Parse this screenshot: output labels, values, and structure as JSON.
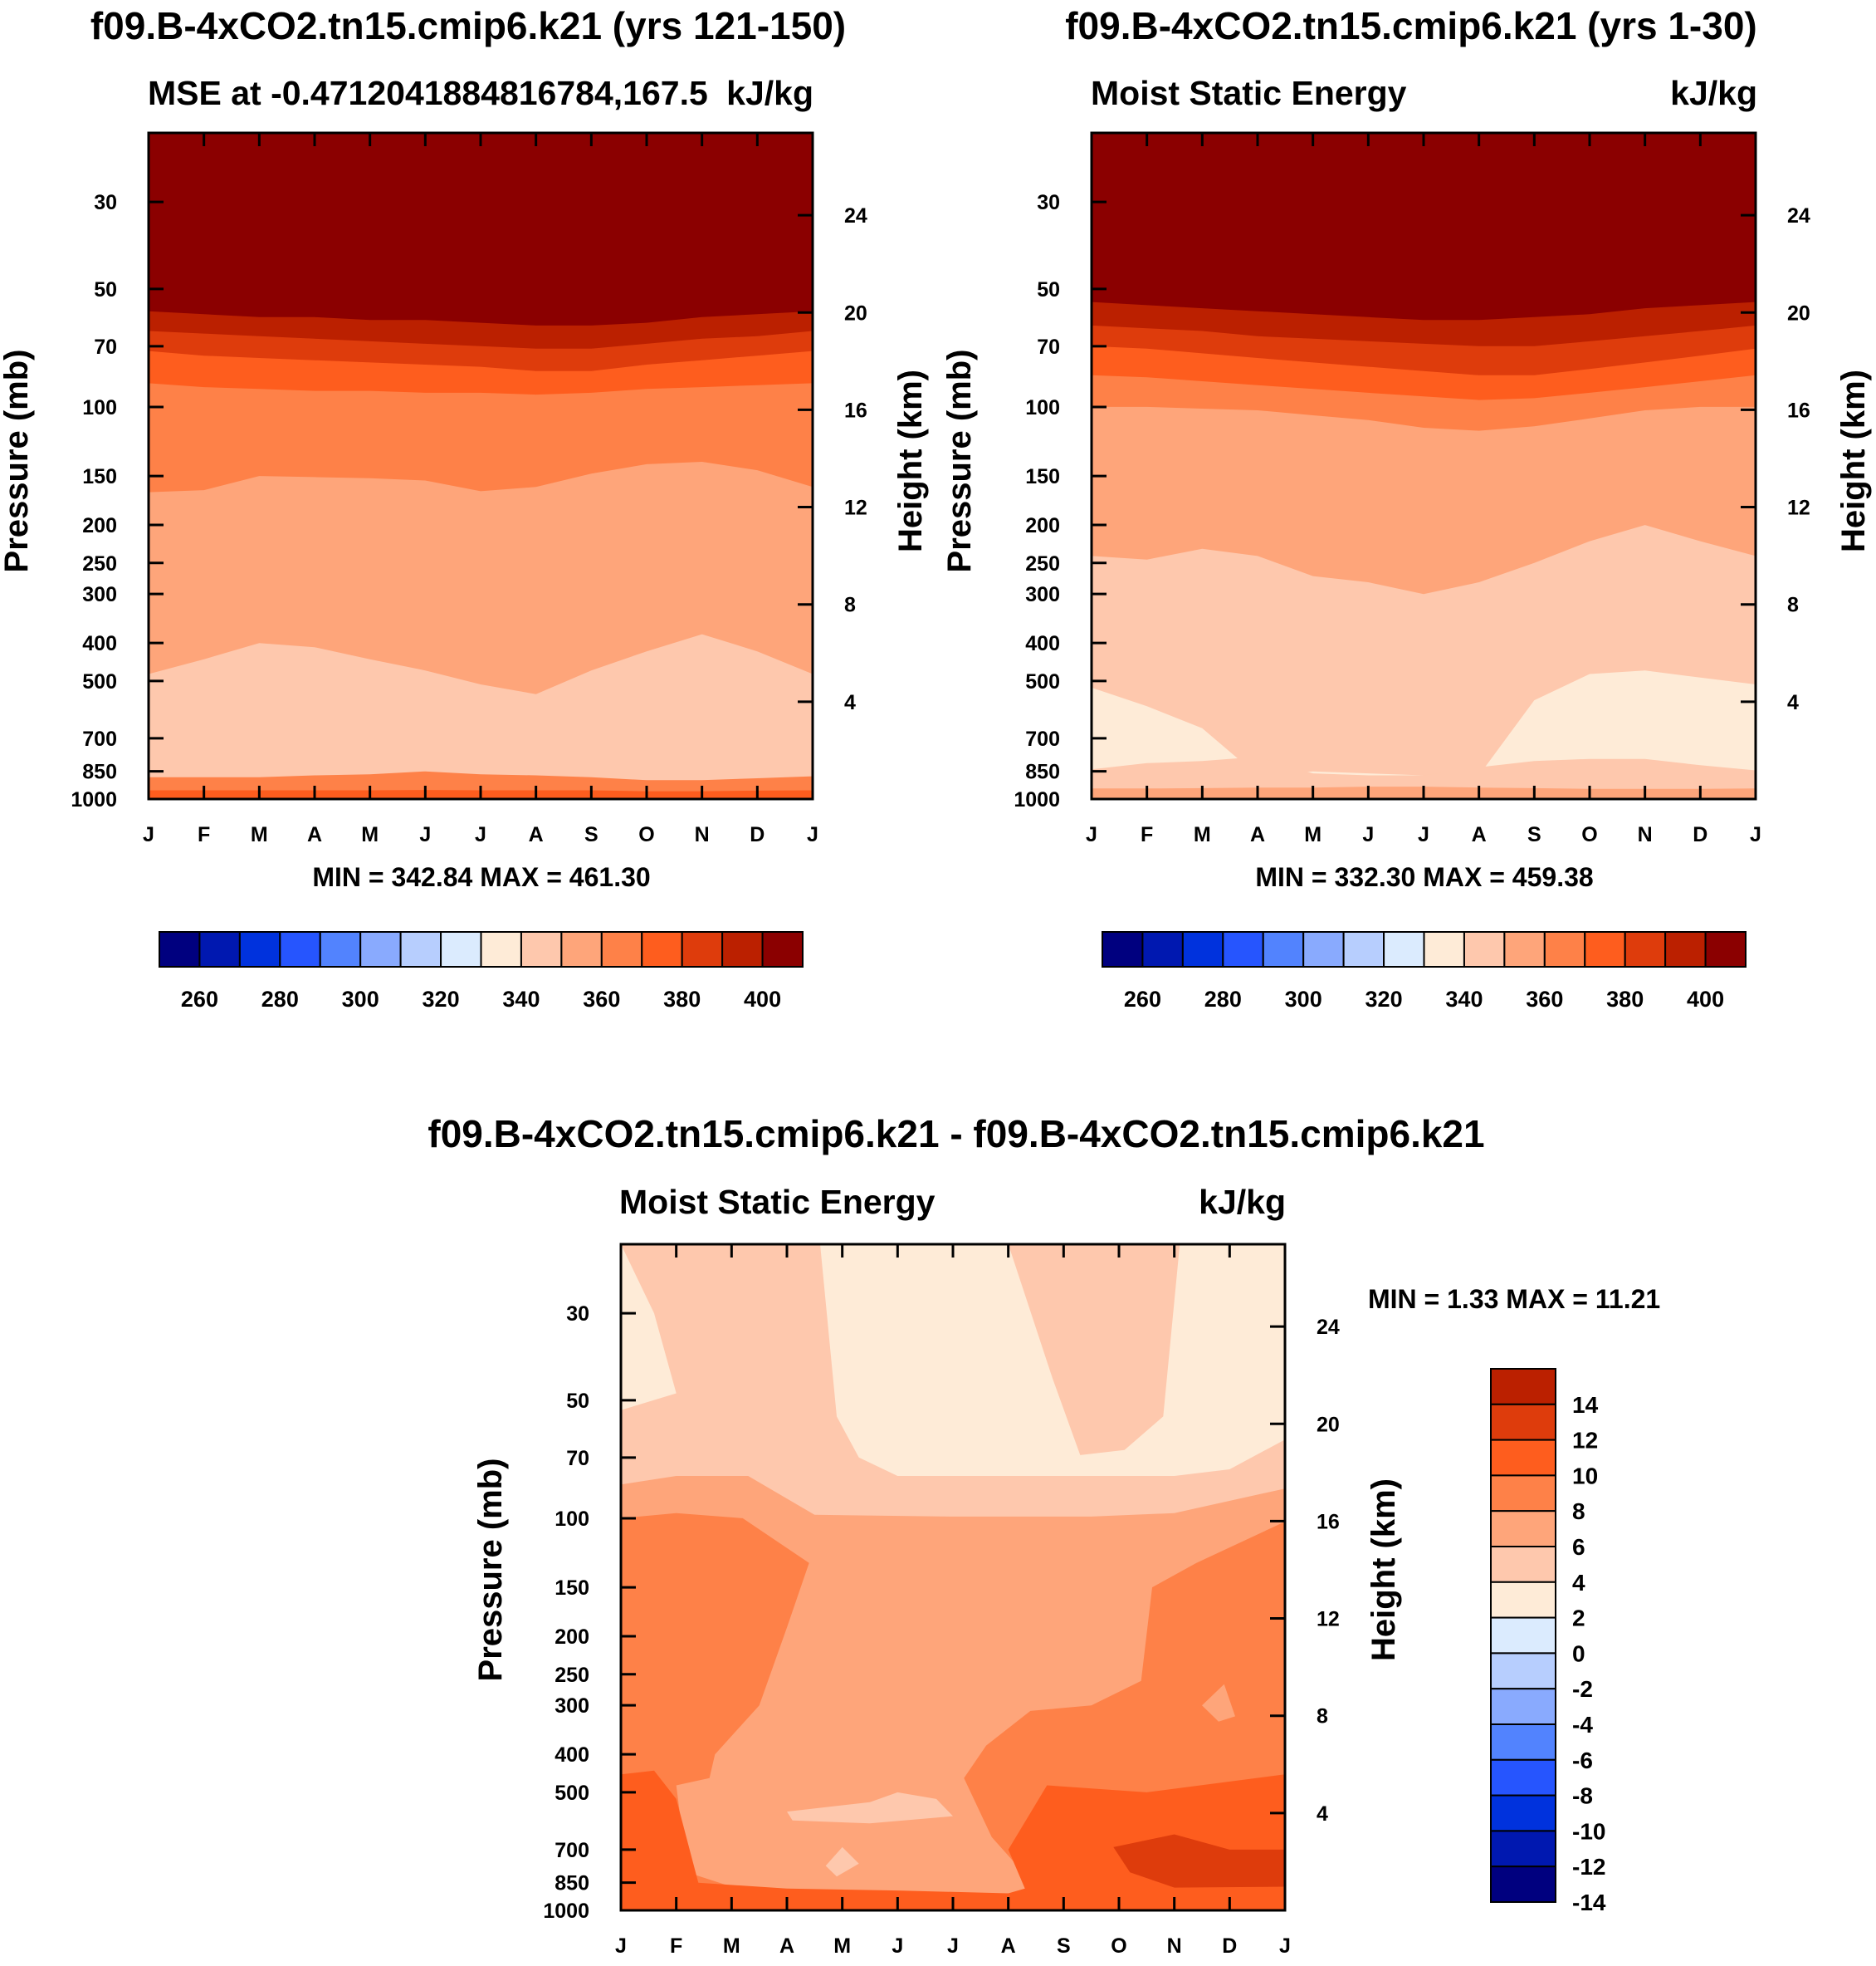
{
  "chart_data": [
    {
      "type": "contour",
      "panel": "top-left",
      "title": "f09.B-4xCO2.tn15.cmip6.k21 (yrs 121-150)",
      "left_subtitle": "MSE at -0.4712041884816784,167.5",
      "right_subtitle": "kJ/kg",
      "ylabel": "Pressure (mb)",
      "y2label": "Height (km)",
      "xlabel": "",
      "x_ticks": [
        "J",
        "F",
        "M",
        "A",
        "M",
        "J",
        "J",
        "A",
        "S",
        "O",
        "N",
        "D",
        "J"
      ],
      "pressure_ticks": [
        30,
        50,
        70,
        100,
        150,
        200,
        250,
        300,
        400,
        500,
        700,
        850,
        1000
      ],
      "pressure_range": [
        1000,
        20
      ],
      "height_ticks": [
        4,
        8,
        12,
        16,
        20,
        24
      ],
      "min_max_text": "MIN = 342.84 MAX = 461.30",
      "levels": [
        250,
        260,
        270,
        280,
        290,
        300,
        310,
        320,
        330,
        340,
        350,
        360,
        370,
        380,
        390,
        400,
        410
      ],
      "colorbar_labels": [
        "260",
        "280",
        "300",
        "320",
        "340",
        "360",
        "380",
        "400"
      ],
      "bands": [
        {
          "color": "#8b0000",
          "boundary_pressure": [
            57,
            58,
            59,
            59,
            60,
            60,
            61,
            62,
            62,
            61,
            59,
            58,
            57
          ]
        },
        {
          "color": "#bb2000",
          "boundary_pressure": [
            64,
            65,
            66,
            67,
            68,
            69,
            70,
            71,
            71,
            69,
            67,
            66,
            64
          ]
        },
        {
          "color": "#de3c0c",
          "boundary_pressure": [
            72,
            74,
            75,
            76,
            77,
            78,
            79,
            81,
            81,
            78,
            76,
            74,
            72
          ]
        },
        {
          "color": "#fe5d1e",
          "boundary_pressure": [
            87,
            89,
            90,
            91,
            91,
            92,
            92,
            93,
            92,
            90,
            89,
            88,
            87
          ]
        },
        {
          "color": "#fe8148",
          "boundary_pressure": [
            165,
            163,
            150,
            151,
            152,
            154,
            164,
            160,
            148,
            140,
            138,
            145,
            160
          ]
        },
        {
          "color": "#fea57a",
          "boundary_pressure": [
            480,
            440,
            400,
            410,
            440,
            470,
            510,
            540,
            470,
            420,
            380,
            420,
            480
          ]
        },
        {
          "color": "#fec8ad",
          "boundary_pressure": [
            880,
            880,
            880,
            870,
            865,
            850,
            865,
            870,
            880,
            895,
            895,
            885,
            875
          ]
        },
        {
          "color": "#fe8148",
          "boundary_pressure": [
            950,
            950,
            950,
            950,
            950,
            948,
            950,
            950,
            950,
            955,
            955,
            952,
            950
          ]
        },
        {
          "color": "#fe5d1e",
          "boundary_pressure": [
            1000,
            1000,
            1000,
            1000,
            1000,
            1000,
            1000,
            1000,
            1000,
            1000,
            1000,
            1000,
            1000
          ]
        }
      ]
    },
    {
      "type": "contour",
      "panel": "top-right",
      "title": "f09.B-4xCO2.tn15.cmip6.k21 (yrs 1-30)",
      "left_subtitle": "Moist Static Energy",
      "right_subtitle": "kJ/kg",
      "ylabel": "Pressure (mb)",
      "y2label": "Height (km)",
      "x_ticks": [
        "J",
        "F",
        "M",
        "A",
        "M",
        "J",
        "J",
        "A",
        "S",
        "O",
        "N",
        "D",
        "J"
      ],
      "pressure_ticks": [
        30,
        50,
        70,
        100,
        150,
        200,
        250,
        300,
        400,
        500,
        700,
        850,
        1000
      ],
      "height_ticks": [
        4,
        8,
        12,
        16,
        20,
        24
      ],
      "min_max_text": "MIN = 332.30 MAX = 459.38",
      "levels": [
        250,
        260,
        270,
        280,
        290,
        300,
        310,
        320,
        330,
        340,
        350,
        360,
        370,
        380,
        390,
        400,
        410
      ],
      "colorbar_labels": [
        "260",
        "280",
        "300",
        "320",
        "340",
        "360",
        "380",
        "400"
      ],
      "bands": [
        {
          "color": "#8b0000",
          "boundary_pressure": [
            54,
            55,
            56,
            57,
            58,
            59,
            60,
            60,
            59,
            58,
            56,
            55,
            54
          ]
        },
        {
          "color": "#bb2000",
          "boundary_pressure": [
            62,
            63,
            64,
            66,
            67,
            68,
            69,
            70,
            70,
            68,
            66,
            64,
            62
          ]
        },
        {
          "color": "#de3c0c",
          "boundary_pressure": [
            70,
            71,
            73,
            75,
            77,
            79,
            81,
            83,
            83,
            80,
            77,
            74,
            71
          ]
        },
        {
          "color": "#fe5d1e",
          "boundary_pressure": [
            83,
            84,
            86,
            88,
            90,
            92,
            94,
            96,
            95,
            92,
            89,
            86,
            83
          ]
        },
        {
          "color": "#fe8148",
          "boundary_pressure": [
            100,
            100,
            101,
            102,
            105,
            108,
            113,
            115,
            112,
            107,
            102,
            100,
            100
          ]
        },
        {
          "color": "#fea57a",
          "boundary_pressure": [
            240,
            245,
            230,
            240,
            270,
            280,
            300,
            280,
            250,
            220,
            200,
            220,
            240
          ]
        },
        {
          "color": "#fec8ad",
          "boundary_pressure": [
            520,
            580,
            660,
            870,
            850,
            860,
            870,
            870,
            560,
            480,
            470,
            490,
            510
          ]
        },
        {
          "color": "#feebd7",
          "boundary_pressure": [
            840,
            810,
            800,
            780,
            860,
            870,
            870,
            830,
            800,
            790,
            790,
            820,
            845
          ]
        },
        {
          "color": "#fec8ad",
          "boundary_pressure": [
            940,
            940,
            938,
            935,
            935,
            930,
            930,
            935,
            938,
            942,
            942,
            942,
            940
          ]
        },
        {
          "color": "#fea57a",
          "boundary_pressure": [
            1000,
            1000,
            1000,
            1000,
            1000,
            1000,
            1000,
            1000,
            1000,
            1000,
            1000,
            1000,
            1000
          ]
        }
      ]
    },
    {
      "type": "contour",
      "panel": "bottom",
      "title": "f09.B-4xCO2.tn15.cmip6.k21 - f09.B-4xCO2.tn15.cmip6.k21",
      "left_subtitle": "Moist Static Energy",
      "right_subtitle": "kJ/kg",
      "ylabel": "Pressure (mb)",
      "y2label": "Height (km)",
      "x_ticks": [
        "J",
        "F",
        "M",
        "A",
        "M",
        "J",
        "J",
        "A",
        "S",
        "O",
        "N",
        "D",
        "J"
      ],
      "pressure_ticks": [
        30,
        50,
        70,
        100,
        150,
        200,
        250,
        300,
        400,
        500,
        700,
        850,
        1000
      ],
      "height_ticks": [
        4,
        8,
        12,
        16,
        20,
        24
      ],
      "min_max_text": "MIN =   1.33 MAX =  11.21",
      "levels": [
        -15,
        -13,
        -11,
        -9,
        -7,
        -5,
        -3,
        -1,
        1,
        3,
        5,
        7,
        9,
        11,
        13,
        15
      ],
      "colorbar_labels": [
        "14",
        "12",
        "10",
        "8",
        "6",
        "4",
        "2",
        "0",
        "-2",
        "-4",
        "-6",
        "-8",
        "-10",
        "-12",
        "-14"
      ],
      "blobs": [
        {
          "color": "#feebd7",
          "points": [
            [
              0,
              20
            ],
            [
              0,
              53
            ],
            [
              1,
              48
            ],
            [
              0.6,
              30
            ]
          ]
        },
        {
          "color": "#feebd7",
          "points": [
            [
              3.6,
              20
            ],
            [
              7,
              20
            ],
            [
              7.8,
              44
            ],
            [
              8.3,
              69
            ],
            [
              9.1,
              67
            ],
            [
              9.8,
              55
            ],
            [
              10.1,
              20
            ],
            [
              12,
              20
            ],
            [
              12,
              63
            ],
            [
              11,
              75
            ],
            [
              10,
              78
            ],
            [
              8,
              78
            ],
            [
              5,
              78
            ],
            [
              4.3,
              70
            ],
            [
              3.9,
              55
            ]
          ]
        },
        {
          "color": "#fea57a",
          "points": [
            [
              0,
              82
            ],
            [
              1,
              78
            ],
            [
              2.3,
              78
            ],
            [
              3.5,
              98
            ],
            [
              6,
              99
            ],
            [
              7.4,
              99
            ],
            [
              8.5,
              99
            ],
            [
              10,
              97
            ],
            [
              12,
              84
            ],
            [
              12,
              1000
            ],
            [
              0,
              1000
            ]
          ]
        },
        {
          "color": "#fe8148",
          "points": [
            [
              0,
              100
            ],
            [
              1,
              97
            ],
            [
              2.2,
              100
            ],
            [
              3.4,
              130
            ],
            [
              3.0,
              190
            ],
            [
              2.5,
              300
            ],
            [
              1.7,
              400
            ],
            [
              1.6,
              460
            ],
            [
              1,
              480
            ],
            [
              1.2,
              800
            ],
            [
              2,
              870
            ],
            [
              3,
              900
            ],
            [
              4,
              920
            ],
            [
              6,
              930
            ],
            [
              7.2,
              940
            ],
            [
              7.5,
              870
            ],
            [
              6.7,
              650
            ],
            [
              6.2,
              460
            ],
            [
              6.6,
              380
            ],
            [
              7.4,
              310
            ],
            [
              8.5,
              300
            ],
            [
              9.4,
              260
            ],
            [
              9.6,
              150
            ],
            [
              10.4,
              130
            ],
            [
              12,
              102
            ],
            [
              12,
              1000
            ],
            [
              0,
              1000
            ]
          ]
        },
        {
          "color": "#fe5d1e",
          "points": [
            [
              0,
              450
            ],
            [
              0.6,
              440
            ],
            [
              1,
              520
            ],
            [
              1.4,
              850
            ],
            [
              3,
              880
            ],
            [
              5,
              890
            ],
            [
              7,
              905
            ],
            [
              7.3,
              880
            ],
            [
              7.0,
              700
            ],
            [
              7.7,
              480
            ],
            [
              9.5,
              500
            ],
            [
              12,
              450
            ],
            [
              12,
              1000
            ],
            [
              0,
              1000
            ]
          ]
        },
        {
          "color": "#de3c0c",
          "points": [
            [
              8.9,
              690
            ],
            [
              10,
              640
            ],
            [
              11,
              700
            ],
            [
              12,
              700
            ],
            [
              12,
              870
            ],
            [
              10,
              875
            ],
            [
              9.2,
              800
            ]
          ]
        },
        {
          "color": "#fea57a",
          "points": [
            [
              10.5,
              300
            ],
            [
              10.9,
              265
            ],
            [
              11.1,
              320
            ],
            [
              10.8,
              330
            ]
          ]
        },
        {
          "color": "#fec8ad",
          "points": [
            [
              3,
              560
            ],
            [
              4.5,
              530
            ],
            [
              5,
              500
            ],
            [
              5.7,
              520
            ],
            [
              6,
              575
            ],
            [
              4.5,
              600
            ],
            [
              3.1,
              590
            ]
          ]
        },
        {
          "color": "#fec8ad",
          "points": [
            [
              3.7,
              770
            ],
            [
              4,
              690
            ],
            [
              4.3,
              760
            ],
            [
              3.9,
              820
            ]
          ]
        }
      ]
    }
  ],
  "colors": {
    "diverging_palette": [
      "#00007f",
      "#0018b0",
      "#0032dd",
      "#2655fe",
      "#5283fe",
      "#89aafe",
      "#b7cefe",
      "#dbebfe",
      "#feebd7",
      "#fec8ad",
      "#fea57a",
      "#fe8148",
      "#fe5d1e",
      "#de3c0c",
      "#bb2000",
      "#8b0000"
    ]
  }
}
